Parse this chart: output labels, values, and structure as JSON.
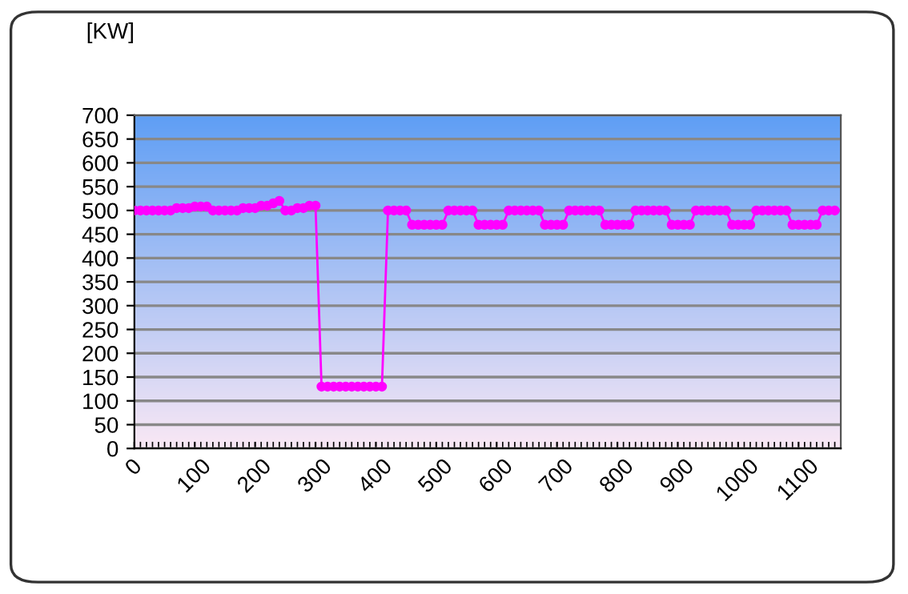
{
  "chart_data": {
    "type": "line",
    "ylabel": "[KW]",
    "x": [
      0,
      10,
      20,
      30,
      40,
      50,
      60,
      70,
      80,
      90,
      100,
      110,
      120,
      130,
      140,
      150,
      160,
      170,
      180,
      190,
      200,
      210,
      220,
      230,
      240,
      250,
      260,
      270,
      280,
      290,
      300,
      310,
      320,
      330,
      340,
      350,
      360,
      370,
      380,
      390,
      400,
      410,
      420,
      430,
      440,
      450,
      460,
      470,
      480,
      490,
      500,
      510,
      520,
      530,
      540,
      550,
      560,
      570,
      580,
      590,
      600,
      610,
      620,
      630,
      640,
      650,
      660,
      670,
      680,
      690,
      700,
      710,
      720,
      730,
      740,
      750,
      760,
      770,
      780,
      790,
      800,
      810,
      820,
      830,
      840,
      850,
      860,
      870,
      880,
      890,
      900,
      910,
      920,
      930,
      940,
      950,
      960,
      970,
      980,
      990,
      1000,
      1010,
      1020,
      1030,
      1040,
      1050,
      1060,
      1070,
      1080,
      1090,
      1100,
      1110,
      1120,
      1130,
      1140,
      1150,
      1160
    ],
    "series": [
      {
        "color": "#ff00ff",
        "values": [
          500,
          500,
          500,
          500,
          500,
          500,
          500,
          505,
          505,
          505,
          508,
          508,
          508,
          500,
          500,
          500,
          500,
          500,
          505,
          505,
          505,
          510,
          510,
          515,
          520,
          500,
          500,
          505,
          505,
          510,
          510,
          130,
          130,
          130,
          130,
          130,
          130,
          130,
          130,
          130,
          130,
          130,
          500,
          500,
          500,
          500,
          470,
          470,
          470,
          470,
          470,
          470,
          500,
          500,
          500,
          500,
          500,
          470,
          470,
          470,
          470,
          470,
          500,
          500,
          500,
          500,
          500,
          500,
          470,
          470,
          470,
          470,
          500,
          500,
          500,
          500,
          500,
          500,
          470,
          470,
          470,
          470,
          470,
          500,
          500,
          500,
          500,
          500,
          500,
          470,
          470,
          470,
          470,
          500,
          500,
          500,
          500,
          500,
          500,
          470,
          470,
          470,
          470,
          500,
          500,
          500,
          500,
          500,
          500,
          470,
          470,
          470,
          470,
          470,
          500,
          500,
          500
        ]
      }
    ],
    "xlim": [
      0,
      1170
    ],
    "xticks": [
      0,
      100,
      200,
      300,
      400,
      500,
      600,
      700,
      800,
      900,
      1000,
      1100
    ],
    "ylim": [
      0,
      700
    ],
    "yticks": [
      0,
      50,
      100,
      150,
      200,
      250,
      300,
      350,
      400,
      450,
      500,
      550,
      600,
      650,
      700
    ],
    "grid": "y",
    "marker": "circle",
    "line_style": "solid",
    "legend": false
  }
}
